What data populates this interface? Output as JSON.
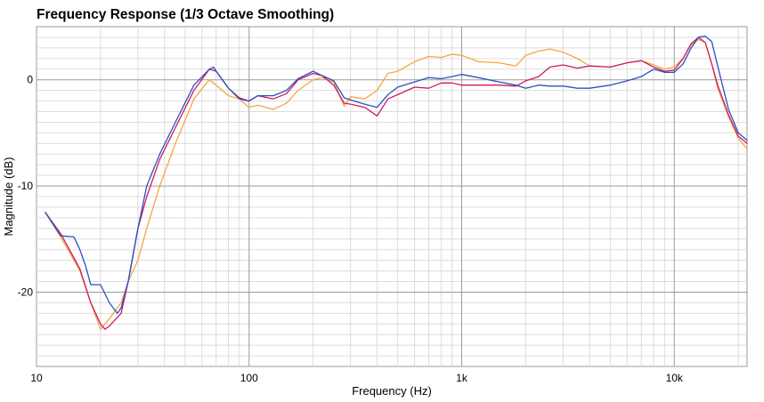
{
  "chart_data": {
    "type": "line",
    "title": "Frequency Response (1/3 Octave Smoothing)",
    "xlabel": "Frequency (Hz)",
    "ylabel": "Magnitude (dB)",
    "xscale": "log",
    "xlim": [
      10,
      22000
    ],
    "ylim": [
      -27,
      5
    ],
    "grid": true,
    "xticks": [
      {
        "value": 10,
        "label": "10"
      },
      {
        "value": 100,
        "label": "100"
      },
      {
        "value": 1000,
        "label": "1k"
      },
      {
        "value": 10000,
        "label": "10k"
      }
    ],
    "yticks": [
      {
        "value": 0,
        "label": "0"
      },
      {
        "value": -10,
        "label": "-10"
      },
      {
        "value": -20,
        "label": "-20"
      }
    ],
    "series": [
      {
        "color": "#f5a742",
        "x": [
          11,
          13,
          16,
          18,
          20,
          22,
          25,
          27,
          30,
          33,
          38,
          45,
          55,
          65,
          70,
          80,
          90,
          100,
          110,
          130,
          150,
          170,
          200,
          220,
          250,
          280,
          300,
          350,
          400,
          450,
          500,
          600,
          700,
          800,
          900,
          1000,
          1200,
          1500,
          1800,
          2000,
          2300,
          2600,
          3000,
          3500,
          4000,
          5000,
          6000,
          7000,
          8000,
          9000,
          10000,
          11000,
          12000,
          13000,
          14000,
          15000,
          16000,
          18000,
          20000,
          22000
        ],
        "y": [
          -12.5,
          -14.8,
          -18,
          -21,
          -23.5,
          -22.5,
          -21,
          -19,
          -17,
          -14,
          -10,
          -6,
          -1.8,
          0,
          -0.5,
          -1.5,
          -1.8,
          -2.6,
          -2.4,
          -2.8,
          -2.2,
          -1,
          0,
          0.2,
          -0.2,
          -2.5,
          -1.6,
          -1.8,
          -1,
          0.6,
          0.8,
          1.7,
          2.2,
          2.1,
          2.4,
          2.3,
          1.7,
          1.6,
          1.3,
          2.3,
          2.7,
          2.9,
          2.6,
          2,
          1.3,
          1.2,
          1.6,
          1.8,
          1.4,
          1,
          1.2,
          2,
          3.3,
          3.8,
          3.5,
          1.5,
          -0.8,
          -3.5,
          -5.5,
          -6.5
        ]
      },
      {
        "color": "#cc1a66",
        "x": [
          11,
          13,
          16,
          18,
          20,
          21,
          22,
          25,
          27,
          30,
          33,
          38,
          45,
          55,
          65,
          70,
          80,
          90,
          100,
          110,
          130,
          150,
          170,
          200,
          220,
          250,
          280,
          300,
          350,
          400,
          450,
          500,
          600,
          700,
          800,
          900,
          1000,
          1200,
          1500,
          1800,
          2000,
          2300,
          2600,
          3000,
          3500,
          4000,
          5000,
          6000,
          7000,
          8000,
          9000,
          10000,
          11000,
          12000,
          13000,
          14000,
          15000,
          16000,
          18000,
          20000,
          22000
        ],
        "y": [
          -12.5,
          -14.5,
          -17.8,
          -21,
          -23,
          -23.5,
          -23.2,
          -22,
          -19,
          -14,
          -11,
          -7.5,
          -4.5,
          -1,
          1,
          0.8,
          -0.8,
          -1.7,
          -2,
          -1.5,
          -1.8,
          -1.3,
          0,
          0.6,
          0.4,
          -0.5,
          -2.2,
          -2.3,
          -2.6,
          -3.4,
          -1.8,
          -1.4,
          -0.7,
          -0.8,
          -0.3,
          -0.3,
          -0.5,
          -0.5,
          -0.5,
          -0.6,
          -0.1,
          0.3,
          1.2,
          1.4,
          1.1,
          1.3,
          1.2,
          1.6,
          1.8,
          1.2,
          0.8,
          0.9,
          2,
          3.4,
          4,
          3.5,
          1.5,
          -0.5,
          -3.3,
          -5.3,
          -6
        ]
      },
      {
        "color": "#2a52be",
        "x": [
          11,
          13,
          15,
          16,
          17,
          18,
          20,
          22,
          24,
          25,
          27,
          30,
          33,
          38,
          45,
          55,
          65,
          68,
          70,
          80,
          90,
          100,
          110,
          130,
          150,
          170,
          200,
          220,
          250,
          280,
          300,
          350,
          400,
          450,
          500,
          600,
          700,
          800,
          900,
          1000,
          1200,
          1500,
          1800,
          2000,
          2300,
          2600,
          3000,
          3500,
          4000,
          5000,
          6000,
          7000,
          8000,
          9000,
          10000,
          11000,
          12000,
          13000,
          14000,
          15000,
          16000,
          18000,
          20000,
          22000
        ],
        "y": [
          -12.5,
          -14.7,
          -14.8,
          -16,
          -17.5,
          -19.3,
          -19.3,
          -21,
          -22,
          -21.5,
          -19,
          -14,
          -10,
          -7,
          -4,
          -0.5,
          1,
          1.2,
          0.8,
          -0.8,
          -1.8,
          -2,
          -1.5,
          -1.5,
          -1,
          0.1,
          0.8,
          0.4,
          -0.1,
          -1.7,
          -1.9,
          -2.3,
          -2.6,
          -1.4,
          -0.7,
          -0.2,
          0.2,
          0.1,
          0.3,
          0.5,
          0.2,
          -0.2,
          -0.5,
          -0.8,
          -0.5,
          -0.6,
          -0.6,
          -0.8,
          -0.8,
          -0.5,
          -0.1,
          0.3,
          1,
          0.7,
          0.7,
          1.5,
          3,
          4,
          4.1,
          3.6,
          1.3,
          -2.8,
          -5,
          -5.7
        ]
      }
    ]
  }
}
